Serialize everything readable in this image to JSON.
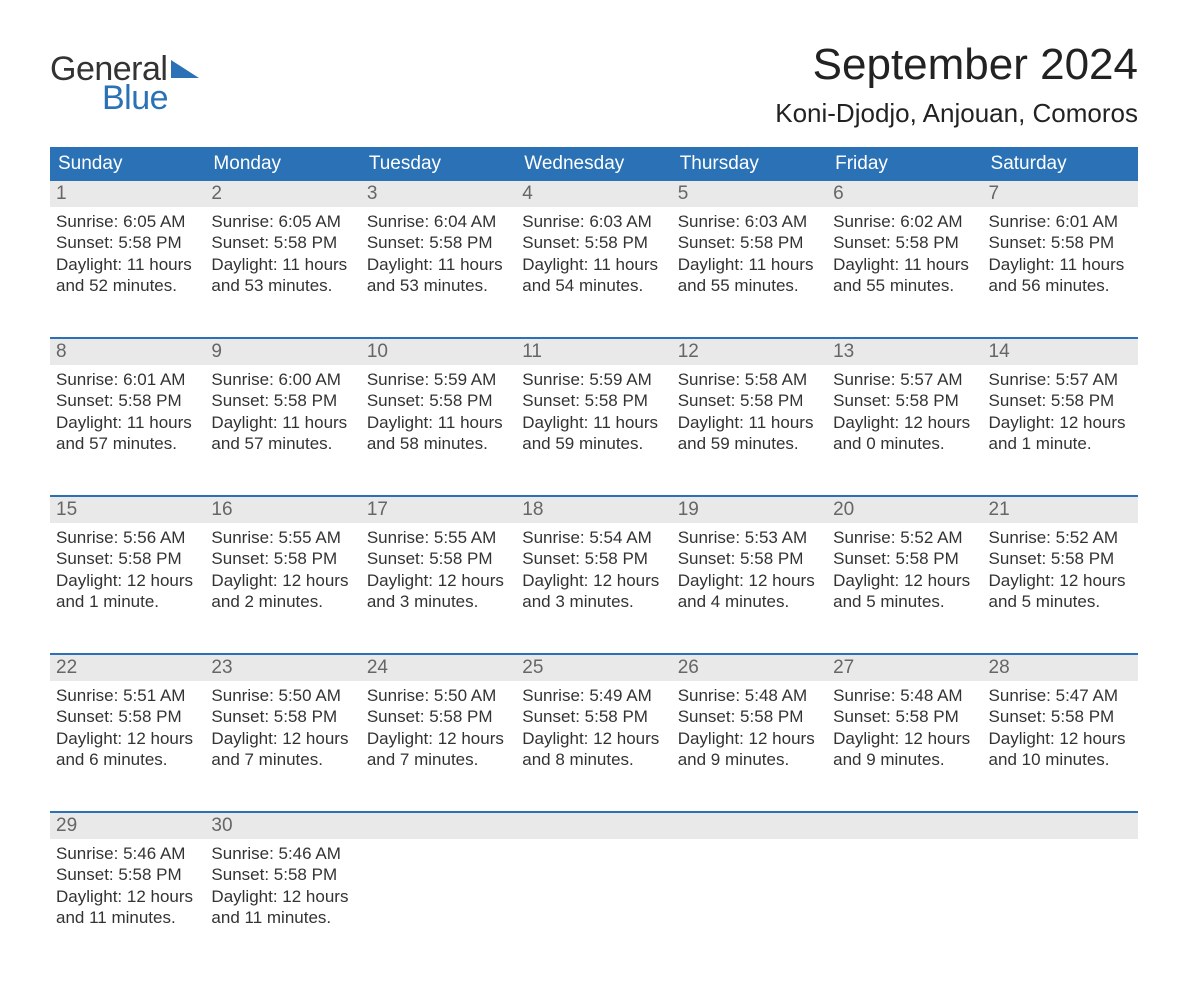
{
  "brand": {
    "word1": "General",
    "word2": "Blue",
    "triangle_color": "#2a72b5",
    "text_color_dark": "#333333",
    "text_color_blue": "#2a72b5"
  },
  "header": {
    "month_title": "September 2024",
    "location": "Koni-Djodjo, Anjouan, Comoros"
  },
  "calendar": {
    "type": "table",
    "header_bg": "#2a72b5",
    "header_fg": "#ffffff",
    "daynum_bg": "#e9e9e9",
    "daynum_fg": "#666666",
    "topline_color": "#2a72b5",
    "body_fg": "#333333",
    "background_color": "#ffffff",
    "columns": [
      "Sunday",
      "Monday",
      "Tuesday",
      "Wednesday",
      "Thursday",
      "Friday",
      "Saturday"
    ],
    "weeks": [
      {
        "days": [
          {
            "num": "1",
            "sunrise": "Sunrise: 6:05 AM",
            "sunset": "Sunset: 5:58 PM",
            "day1": "Daylight: 11 hours",
            "day2": "and 52 minutes."
          },
          {
            "num": "2",
            "sunrise": "Sunrise: 6:05 AM",
            "sunset": "Sunset: 5:58 PM",
            "day1": "Daylight: 11 hours",
            "day2": "and 53 minutes."
          },
          {
            "num": "3",
            "sunrise": "Sunrise: 6:04 AM",
            "sunset": "Sunset: 5:58 PM",
            "day1": "Daylight: 11 hours",
            "day2": "and 53 minutes."
          },
          {
            "num": "4",
            "sunrise": "Sunrise: 6:03 AM",
            "sunset": "Sunset: 5:58 PM",
            "day1": "Daylight: 11 hours",
            "day2": "and 54 minutes."
          },
          {
            "num": "5",
            "sunrise": "Sunrise: 6:03 AM",
            "sunset": "Sunset: 5:58 PM",
            "day1": "Daylight: 11 hours",
            "day2": "and 55 minutes."
          },
          {
            "num": "6",
            "sunrise": "Sunrise: 6:02 AM",
            "sunset": "Sunset: 5:58 PM",
            "day1": "Daylight: 11 hours",
            "day2": "and 55 minutes."
          },
          {
            "num": "7",
            "sunrise": "Sunrise: 6:01 AM",
            "sunset": "Sunset: 5:58 PM",
            "day1": "Daylight: 11 hours",
            "day2": "and 56 minutes."
          }
        ]
      },
      {
        "days": [
          {
            "num": "8",
            "sunrise": "Sunrise: 6:01 AM",
            "sunset": "Sunset: 5:58 PM",
            "day1": "Daylight: 11 hours",
            "day2": "and 57 minutes."
          },
          {
            "num": "9",
            "sunrise": "Sunrise: 6:00 AM",
            "sunset": "Sunset: 5:58 PM",
            "day1": "Daylight: 11 hours",
            "day2": "and 57 minutes."
          },
          {
            "num": "10",
            "sunrise": "Sunrise: 5:59 AM",
            "sunset": "Sunset: 5:58 PM",
            "day1": "Daylight: 11 hours",
            "day2": "and 58 minutes."
          },
          {
            "num": "11",
            "sunrise": "Sunrise: 5:59 AM",
            "sunset": "Sunset: 5:58 PM",
            "day1": "Daylight: 11 hours",
            "day2": "and 59 minutes."
          },
          {
            "num": "12",
            "sunrise": "Sunrise: 5:58 AM",
            "sunset": "Sunset: 5:58 PM",
            "day1": "Daylight: 11 hours",
            "day2": "and 59 minutes."
          },
          {
            "num": "13",
            "sunrise": "Sunrise: 5:57 AM",
            "sunset": "Sunset: 5:58 PM",
            "day1": "Daylight: 12 hours",
            "day2": "and 0 minutes."
          },
          {
            "num": "14",
            "sunrise": "Sunrise: 5:57 AM",
            "sunset": "Sunset: 5:58 PM",
            "day1": "Daylight: 12 hours",
            "day2": "and 1 minute."
          }
        ]
      },
      {
        "days": [
          {
            "num": "15",
            "sunrise": "Sunrise: 5:56 AM",
            "sunset": "Sunset: 5:58 PM",
            "day1": "Daylight: 12 hours",
            "day2": "and 1 minute."
          },
          {
            "num": "16",
            "sunrise": "Sunrise: 5:55 AM",
            "sunset": "Sunset: 5:58 PM",
            "day1": "Daylight: 12 hours",
            "day2": "and 2 minutes."
          },
          {
            "num": "17",
            "sunrise": "Sunrise: 5:55 AM",
            "sunset": "Sunset: 5:58 PM",
            "day1": "Daylight: 12 hours",
            "day2": "and 3 minutes."
          },
          {
            "num": "18",
            "sunrise": "Sunrise: 5:54 AM",
            "sunset": "Sunset: 5:58 PM",
            "day1": "Daylight: 12 hours",
            "day2": "and 3 minutes."
          },
          {
            "num": "19",
            "sunrise": "Sunrise: 5:53 AM",
            "sunset": "Sunset: 5:58 PM",
            "day1": "Daylight: 12 hours",
            "day2": "and 4 minutes."
          },
          {
            "num": "20",
            "sunrise": "Sunrise: 5:52 AM",
            "sunset": "Sunset: 5:58 PM",
            "day1": "Daylight: 12 hours",
            "day2": "and 5 minutes."
          },
          {
            "num": "21",
            "sunrise": "Sunrise: 5:52 AM",
            "sunset": "Sunset: 5:58 PM",
            "day1": "Daylight: 12 hours",
            "day2": "and 5 minutes."
          }
        ]
      },
      {
        "days": [
          {
            "num": "22",
            "sunrise": "Sunrise: 5:51 AM",
            "sunset": "Sunset: 5:58 PM",
            "day1": "Daylight: 12 hours",
            "day2": "and 6 minutes."
          },
          {
            "num": "23",
            "sunrise": "Sunrise: 5:50 AM",
            "sunset": "Sunset: 5:58 PM",
            "day1": "Daylight: 12 hours",
            "day2": "and 7 minutes."
          },
          {
            "num": "24",
            "sunrise": "Sunrise: 5:50 AM",
            "sunset": "Sunset: 5:58 PM",
            "day1": "Daylight: 12 hours",
            "day2": "and 7 minutes."
          },
          {
            "num": "25",
            "sunrise": "Sunrise: 5:49 AM",
            "sunset": "Sunset: 5:58 PM",
            "day1": "Daylight: 12 hours",
            "day2": "and 8 minutes."
          },
          {
            "num": "26",
            "sunrise": "Sunrise: 5:48 AM",
            "sunset": "Sunset: 5:58 PM",
            "day1": "Daylight: 12 hours",
            "day2": "and 9 minutes."
          },
          {
            "num": "27",
            "sunrise": "Sunrise: 5:48 AM",
            "sunset": "Sunset: 5:58 PM",
            "day1": "Daylight: 12 hours",
            "day2": "and 9 minutes."
          },
          {
            "num": "28",
            "sunrise": "Sunrise: 5:47 AM",
            "sunset": "Sunset: 5:58 PM",
            "day1": "Daylight: 12 hours",
            "day2": "and 10 minutes."
          }
        ]
      },
      {
        "days": [
          {
            "num": "29",
            "sunrise": "Sunrise: 5:46 AM",
            "sunset": "Sunset: 5:58 PM",
            "day1": "Daylight: 12 hours",
            "day2": "and 11 minutes."
          },
          {
            "num": "30",
            "sunrise": "Sunrise: 5:46 AM",
            "sunset": "Sunset: 5:58 PM",
            "day1": "Daylight: 12 hours",
            "day2": "and 11 minutes."
          },
          {
            "num": "",
            "sunrise": "",
            "sunset": "",
            "day1": "",
            "day2": ""
          },
          {
            "num": "",
            "sunrise": "",
            "sunset": "",
            "day1": "",
            "day2": ""
          },
          {
            "num": "",
            "sunrise": "",
            "sunset": "",
            "day1": "",
            "day2": ""
          },
          {
            "num": "",
            "sunrise": "",
            "sunset": "",
            "day1": "",
            "day2": ""
          },
          {
            "num": "",
            "sunrise": "",
            "sunset": "",
            "day1": "",
            "day2": ""
          }
        ]
      }
    ]
  }
}
